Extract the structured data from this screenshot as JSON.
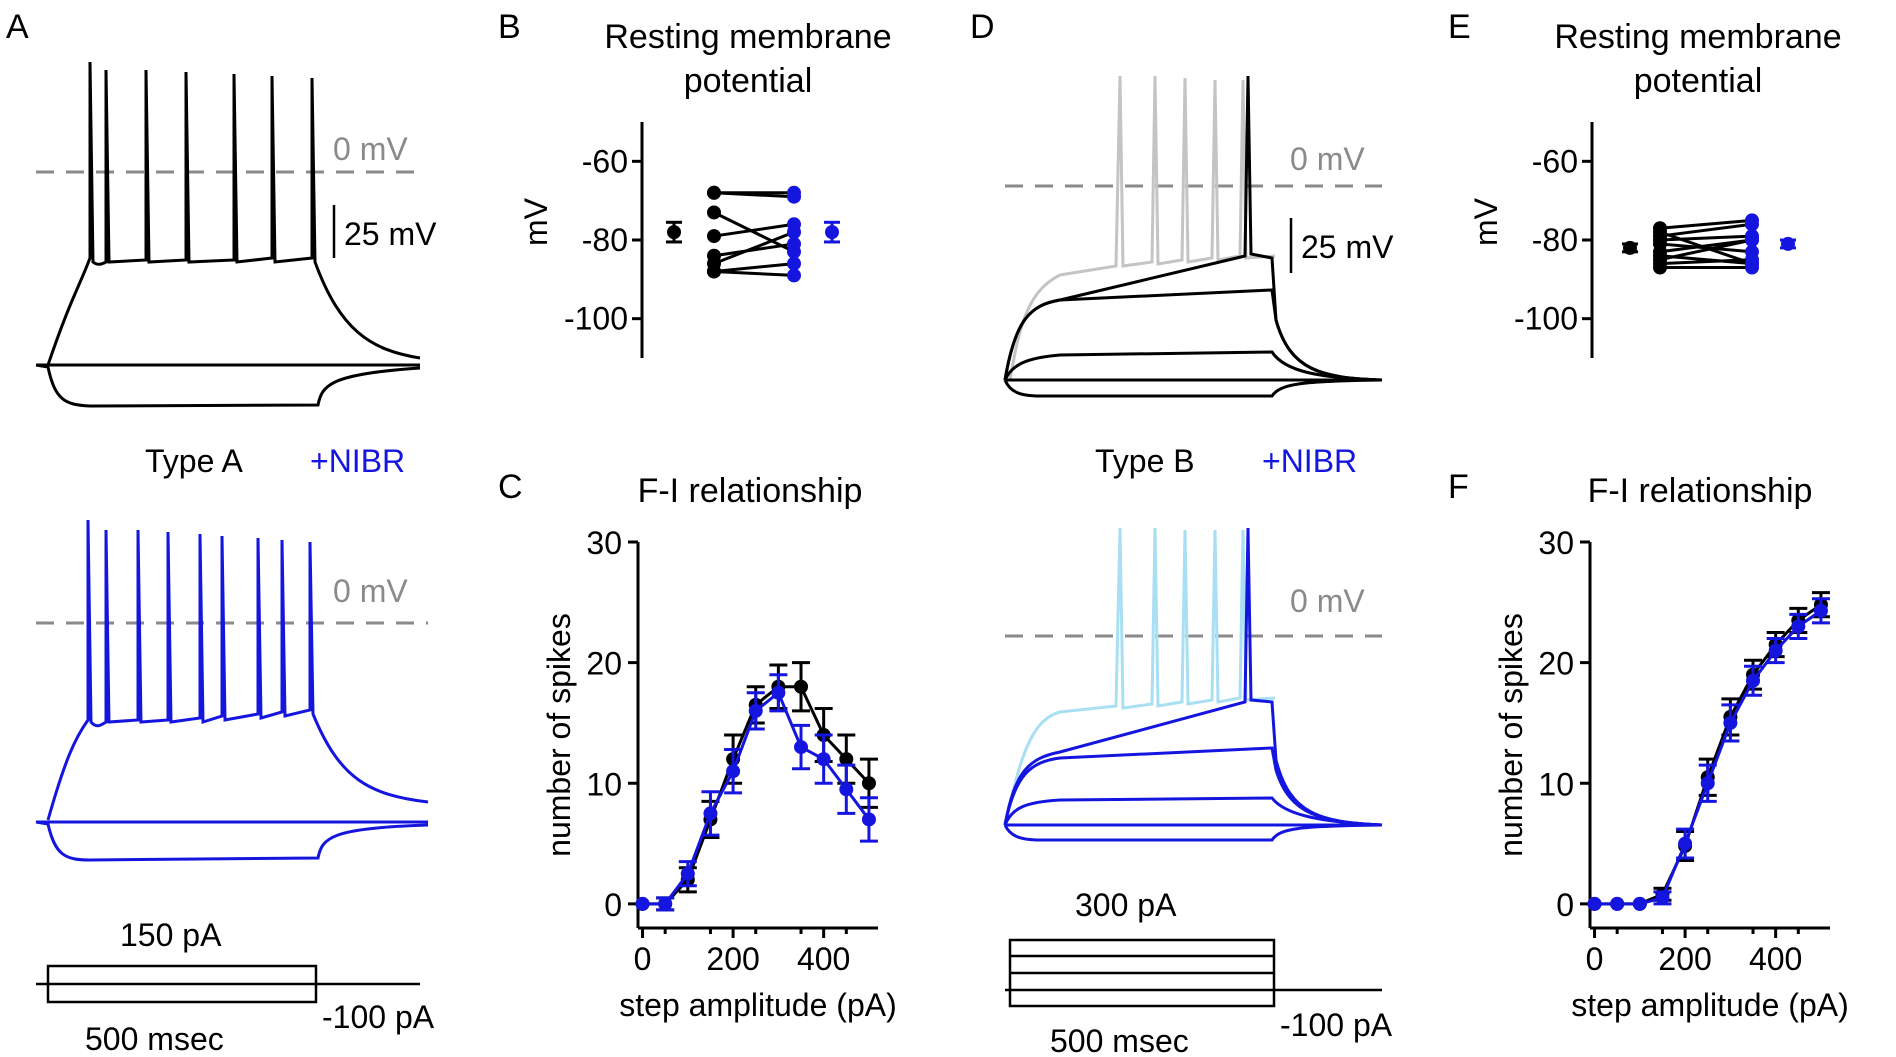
{
  "colors": {
    "control": "#000000",
    "drug": "#1515e0",
    "zero_line": "#8a8a8a",
    "light_control": "#c4c4c4",
    "light_drug": "#a8dff2"
  },
  "panel_letters": {
    "a": "A",
    "b": "B",
    "c": "C",
    "d": "D",
    "e": "E",
    "f": "F"
  },
  "traces": {
    "zero_mv": "0 mV",
    "scale_mv": "25 mV",
    "legend_drug": "+NIBR",
    "type_a_label": "Type A",
    "type_b_label": "Type B",
    "step_a_top": "150 pA",
    "step_b_top": "300 pA",
    "step_bottom": "-100 pA",
    "duration": "500 msec"
  },
  "chart_data": [
    {
      "id": "B",
      "type": "scatter",
      "title": "Resting membrane potential",
      "title_lines": [
        "Resting membrane",
        "potential"
      ],
      "ylabel": "mV",
      "ylim": [
        -110,
        -50
      ],
      "yticks": [
        -60,
        -80,
        -100
      ],
      "ytick_labels": [
        "-60",
        "-80",
        "-100"
      ],
      "paired": [
        [
          -68,
          -68
        ],
        [
          -68,
          -69
        ],
        [
          -73,
          -83
        ],
        [
          -79,
          -76
        ],
        [
          -84,
          -81
        ],
        [
          -86,
          -78
        ],
        [
          -88,
          -86
        ],
        [
          -88,
          -89
        ]
      ],
      "mean_control": {
        "value": -78,
        "err": 2.5
      },
      "mean_drug": {
        "value": -78,
        "err": 2.5
      }
    },
    {
      "id": "E",
      "type": "scatter",
      "title": "Resting membrane potential",
      "title_lines": [
        "Resting membrane",
        "potential"
      ],
      "ylabel": "mV",
      "ylim": [
        -110,
        -50
      ],
      "yticks": [
        -60,
        -80,
        -100
      ],
      "ytick_labels": [
        "-60",
        "-80",
        "-100"
      ],
      "paired": [
        [
          -77,
          -75
        ],
        [
          -79,
          -76
        ],
        [
          -80,
          -79
        ],
        [
          -81,
          -83
        ],
        [
          -83,
          -80
        ],
        [
          -84,
          -86
        ],
        [
          -85,
          -80
        ],
        [
          -86,
          -85
        ],
        [
          -87,
          -87
        ],
        [
          -78,
          -86
        ]
      ],
      "mean_control": {
        "value": -82,
        "err": 1
      },
      "mean_drug": {
        "value": -81,
        "err": 1
      }
    },
    {
      "id": "C",
      "type": "line",
      "title": "F-I relationship",
      "xlabel": "step amplitude (pA)",
      "ylabel": "number of spikes",
      "xlim": [
        -10,
        520
      ],
      "ylim": [
        -2,
        30
      ],
      "xticks": [
        0,
        200,
        400
      ],
      "xtick_labels": [
        "0",
        "200",
        "400"
      ],
      "yticks": [
        0,
        10,
        20,
        30
      ],
      "ytick_labels": [
        "0",
        "10",
        "20",
        "30"
      ],
      "x": [
        0,
        50,
        100,
        150,
        200,
        250,
        300,
        350,
        400,
        450,
        500
      ],
      "series": [
        {
          "name": "control",
          "values": [
            0,
            0,
            2,
            7,
            12,
            16.5,
            18,
            18,
            14,
            12,
            10
          ],
          "errors": [
            0,
            0.5,
            1.0,
            1.5,
            2.0,
            1.5,
            1.8,
            2.0,
            2.2,
            2.0,
            2.0
          ]
        },
        {
          "name": "+NIBR",
          "values": [
            0,
            0,
            2.5,
            7.5,
            11,
            16,
            17.5,
            13,
            12,
            9.5,
            7
          ],
          "errors": [
            0,
            0.5,
            1.0,
            1.8,
            1.8,
            1.5,
            1.5,
            1.8,
            2.0,
            2.0,
            1.8
          ]
        }
      ]
    },
    {
      "id": "F",
      "type": "line",
      "title": "F-I relationship",
      "xlabel": "step amplitude (pA)",
      "ylabel": "number of spikes",
      "xlim": [
        -10,
        520
      ],
      "ylim": [
        -2,
        30
      ],
      "xticks": [
        0,
        200,
        400
      ],
      "xtick_labels": [
        "0",
        "200",
        "400"
      ],
      "yticks": [
        0,
        10,
        20,
        30
      ],
      "ytick_labels": [
        "0",
        "10",
        "20",
        "30"
      ],
      "x": [
        0,
        50,
        100,
        150,
        200,
        250,
        300,
        350,
        400,
        450,
        500
      ],
      "series": [
        {
          "name": "control",
          "values": [
            0,
            0,
            0,
            0.8,
            4.8,
            10.5,
            15.5,
            19,
            21.5,
            23.5,
            24.8
          ],
          "errors": [
            0,
            0,
            0,
            0.5,
            1.2,
            1.5,
            1.5,
            1.2,
            1.0,
            1.0,
            1.0
          ]
        },
        {
          "name": "+NIBR",
          "values": [
            0,
            0,
            0,
            0.5,
            5,
            10,
            15,
            18.5,
            21,
            23,
            24.3
          ],
          "errors": [
            0,
            0,
            0,
            0.5,
            1.2,
            1.5,
            1.5,
            1.2,
            1.0,
            1.0,
            1.0
          ]
        }
      ]
    }
  ]
}
